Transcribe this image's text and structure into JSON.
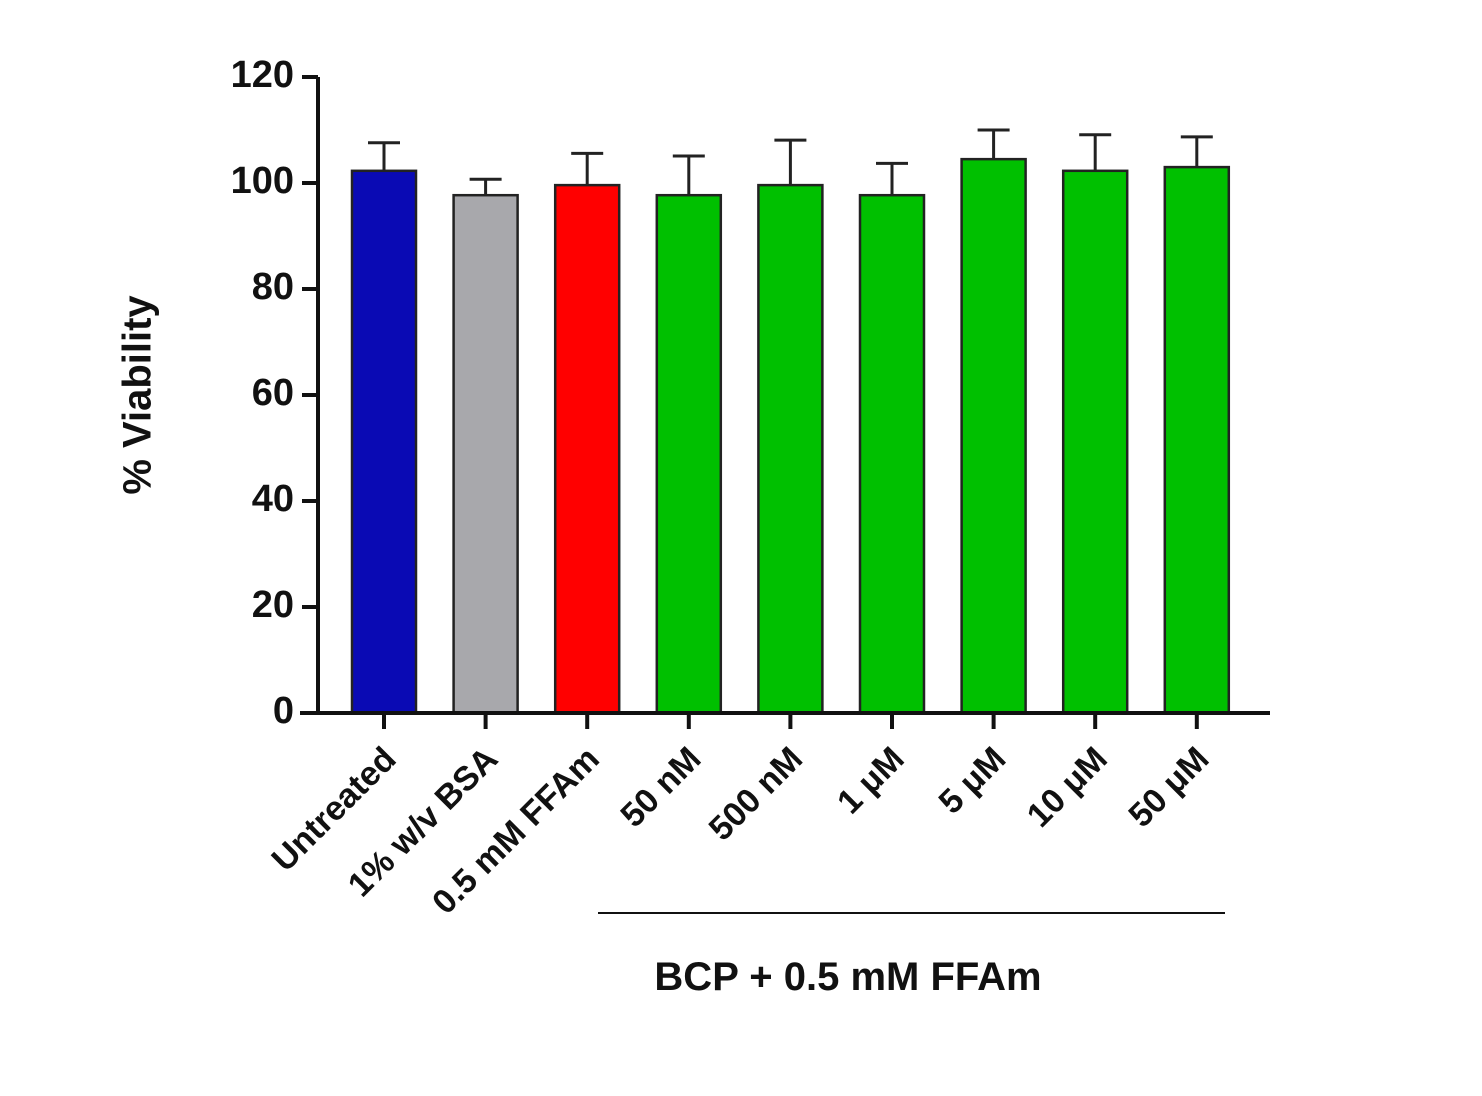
{
  "chart_data": {
    "type": "bar",
    "y_label": "% Viability",
    "annotation": "BCP + 0.5 mM FFAm",
    "categories": [
      "Untreated",
      "1% w/v BSA",
      "0.5 mM FFAm",
      "50 nM",
      "500 nM",
      "1 μM",
      "5 μM",
      "10 μM",
      "50 μM"
    ],
    "values": [
      102.3,
      97.7,
      99.6,
      97.7,
      99.6,
      97.7,
      104.5,
      102.3,
      103
    ],
    "errors": [
      5.3,
      3,
      6,
      7.4,
      8.5,
      6,
      5.5,
      6.8,
      5.7
    ],
    "colors": [
      "#0a0ab4",
      "#a8a8ac",
      "#ff0000",
      "#00c000",
      "#00c000",
      "#00c000",
      "#00c000",
      "#00c000",
      "#00c000"
    ],
    "ylim": [
      0,
      120
    ],
    "yticks": [
      0,
      20,
      40,
      60,
      80,
      100,
      120
    ],
    "grid": false
  }
}
